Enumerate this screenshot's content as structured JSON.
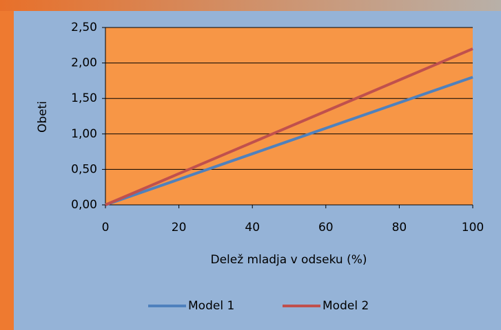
{
  "chart_data": {
    "type": "line",
    "x_label": "Delež mladja v odseku (%)",
    "y_label": "Obeti",
    "x": [
      0,
      20,
      40,
      60,
      80,
      100
    ],
    "series": [
      {
        "name": "Model 1",
        "color": "#4f81bd",
        "values": [
          0,
          0.36,
          0.72,
          1.08,
          1.44,
          1.8
        ]
      },
      {
        "name": "Model 2",
        "color": "#c0504d",
        "values": [
          0,
          0.44,
          0.88,
          1.32,
          1.76,
          2.2
        ]
      }
    ],
    "xlim": [
      0,
      100
    ],
    "xticks": [
      0,
      20,
      40,
      60,
      80,
      100
    ],
    "ylim": [
      0,
      2.5
    ],
    "yticks": [
      {
        "value": 0,
        "label": "0,00"
      },
      {
        "value": 0.5,
        "label": "0,50"
      },
      {
        "value": 1,
        "label": "1,00"
      },
      {
        "value": 1.5,
        "label": "1,50"
      },
      {
        "value": 2,
        "label": "2,00"
      },
      {
        "value": 2.5,
        "label": "2,50"
      }
    ],
    "grid": true,
    "legend": "bottom"
  }
}
